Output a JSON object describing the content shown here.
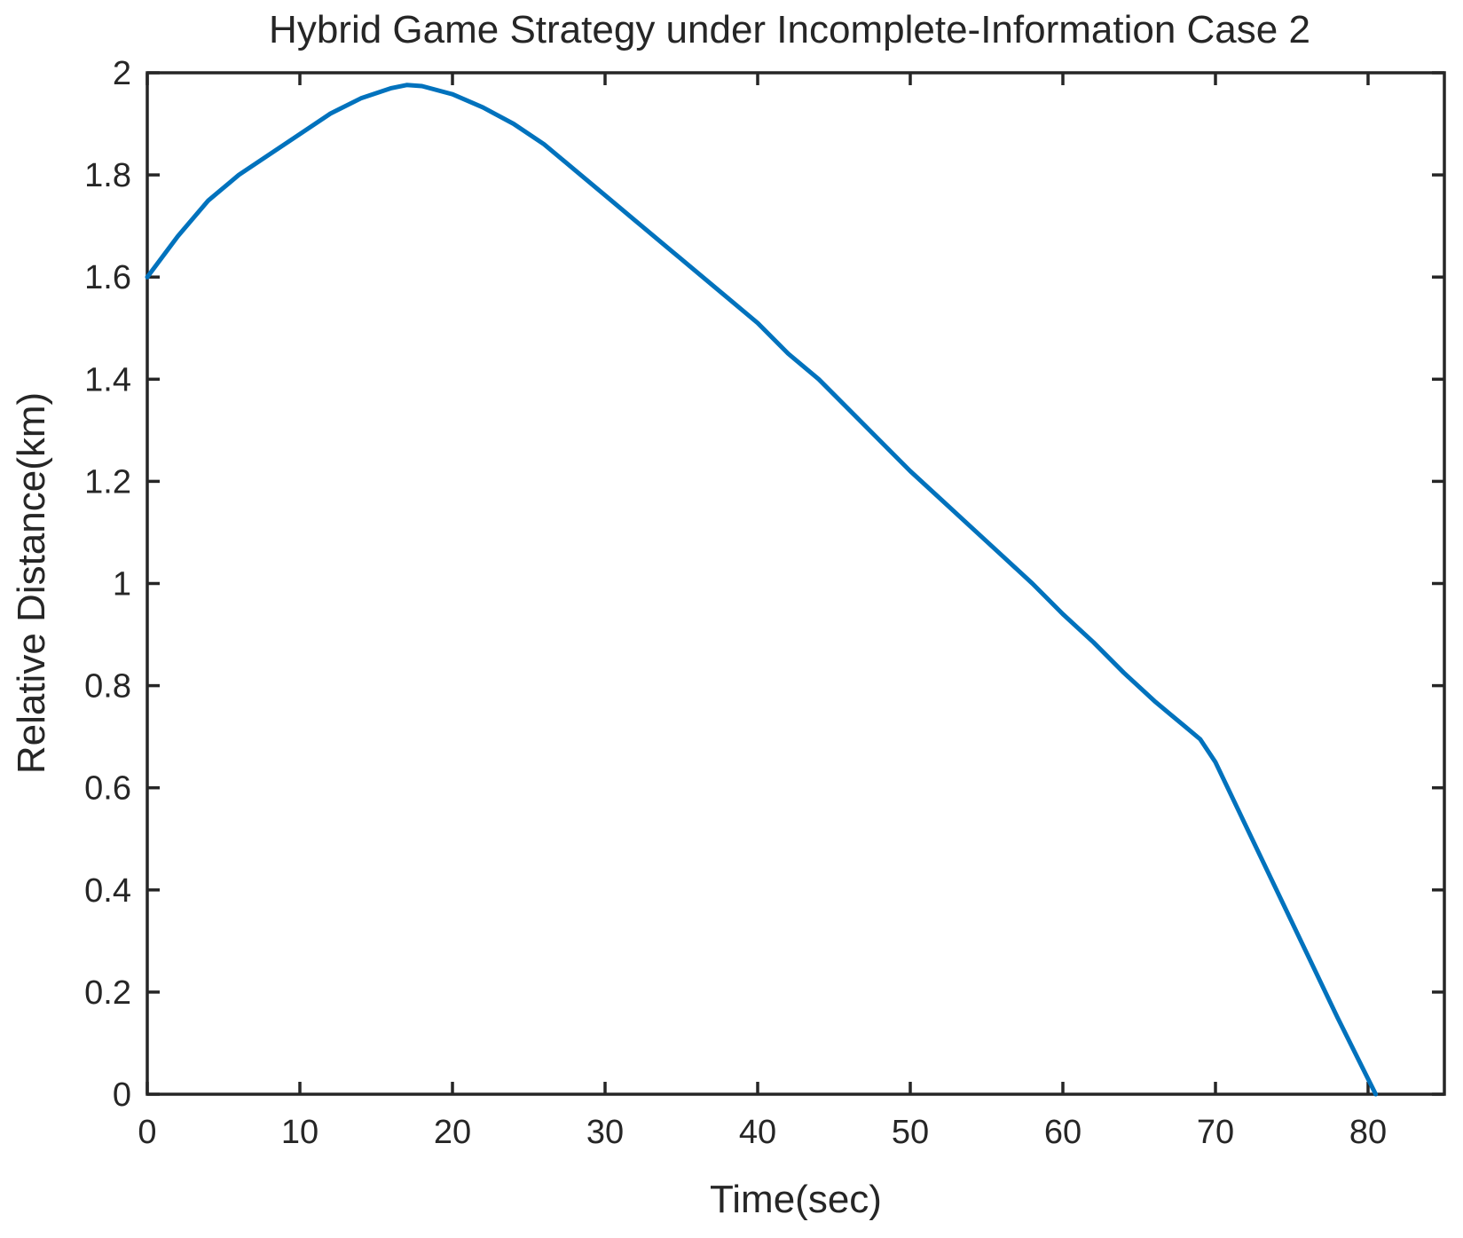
{
  "chart_data": {
    "type": "line",
    "title": "Hybrid Game Strategy under Incomplete-Information Case 2",
    "xlabel": "Time(sec)",
    "ylabel": "Relative Distance(km)",
    "xlim": [
      0,
      85
    ],
    "ylim": [
      0,
      2
    ],
    "xticks": [
      0,
      10,
      20,
      30,
      40,
      50,
      60,
      70,
      80
    ],
    "yticks": [
      0,
      0.2,
      0.4,
      0.6,
      0.8,
      1,
      1.2,
      1.4,
      1.6,
      1.8,
      2
    ],
    "grid": false,
    "box": true,
    "legend": "none",
    "line_color": "#0072BD",
    "axis_color": "#262626",
    "background_color": "#FFFFFF",
    "series": [
      {
        "x": [
          0,
          2,
          4,
          6,
          8,
          10,
          12,
          14,
          16,
          17,
          18,
          20,
          22,
          24,
          26,
          28,
          30,
          32,
          34,
          36,
          38,
          40,
          42,
          44,
          46,
          48,
          50,
          52,
          54,
          56,
          58,
          60,
          62,
          64,
          66,
          67,
          68,
          69,
          70,
          72,
          74,
          76,
          78,
          80,
          80.5
        ],
        "y": [
          1.6,
          1.68,
          1.75,
          1.8,
          1.84,
          1.88,
          1.92,
          1.95,
          1.97,
          1.976,
          1.974,
          1.958,
          1.932,
          1.9,
          1.86,
          1.81,
          1.76,
          1.71,
          1.66,
          1.61,
          1.56,
          1.51,
          1.45,
          1.4,
          1.34,
          1.28,
          1.22,
          1.165,
          1.11,
          1.055,
          1.0,
          0.94,
          0.885,
          0.825,
          0.77,
          0.745,
          0.72,
          0.695,
          0.65,
          0.525,
          0.4,
          0.275,
          0.15,
          0.03,
          0
        ]
      }
    ]
  }
}
